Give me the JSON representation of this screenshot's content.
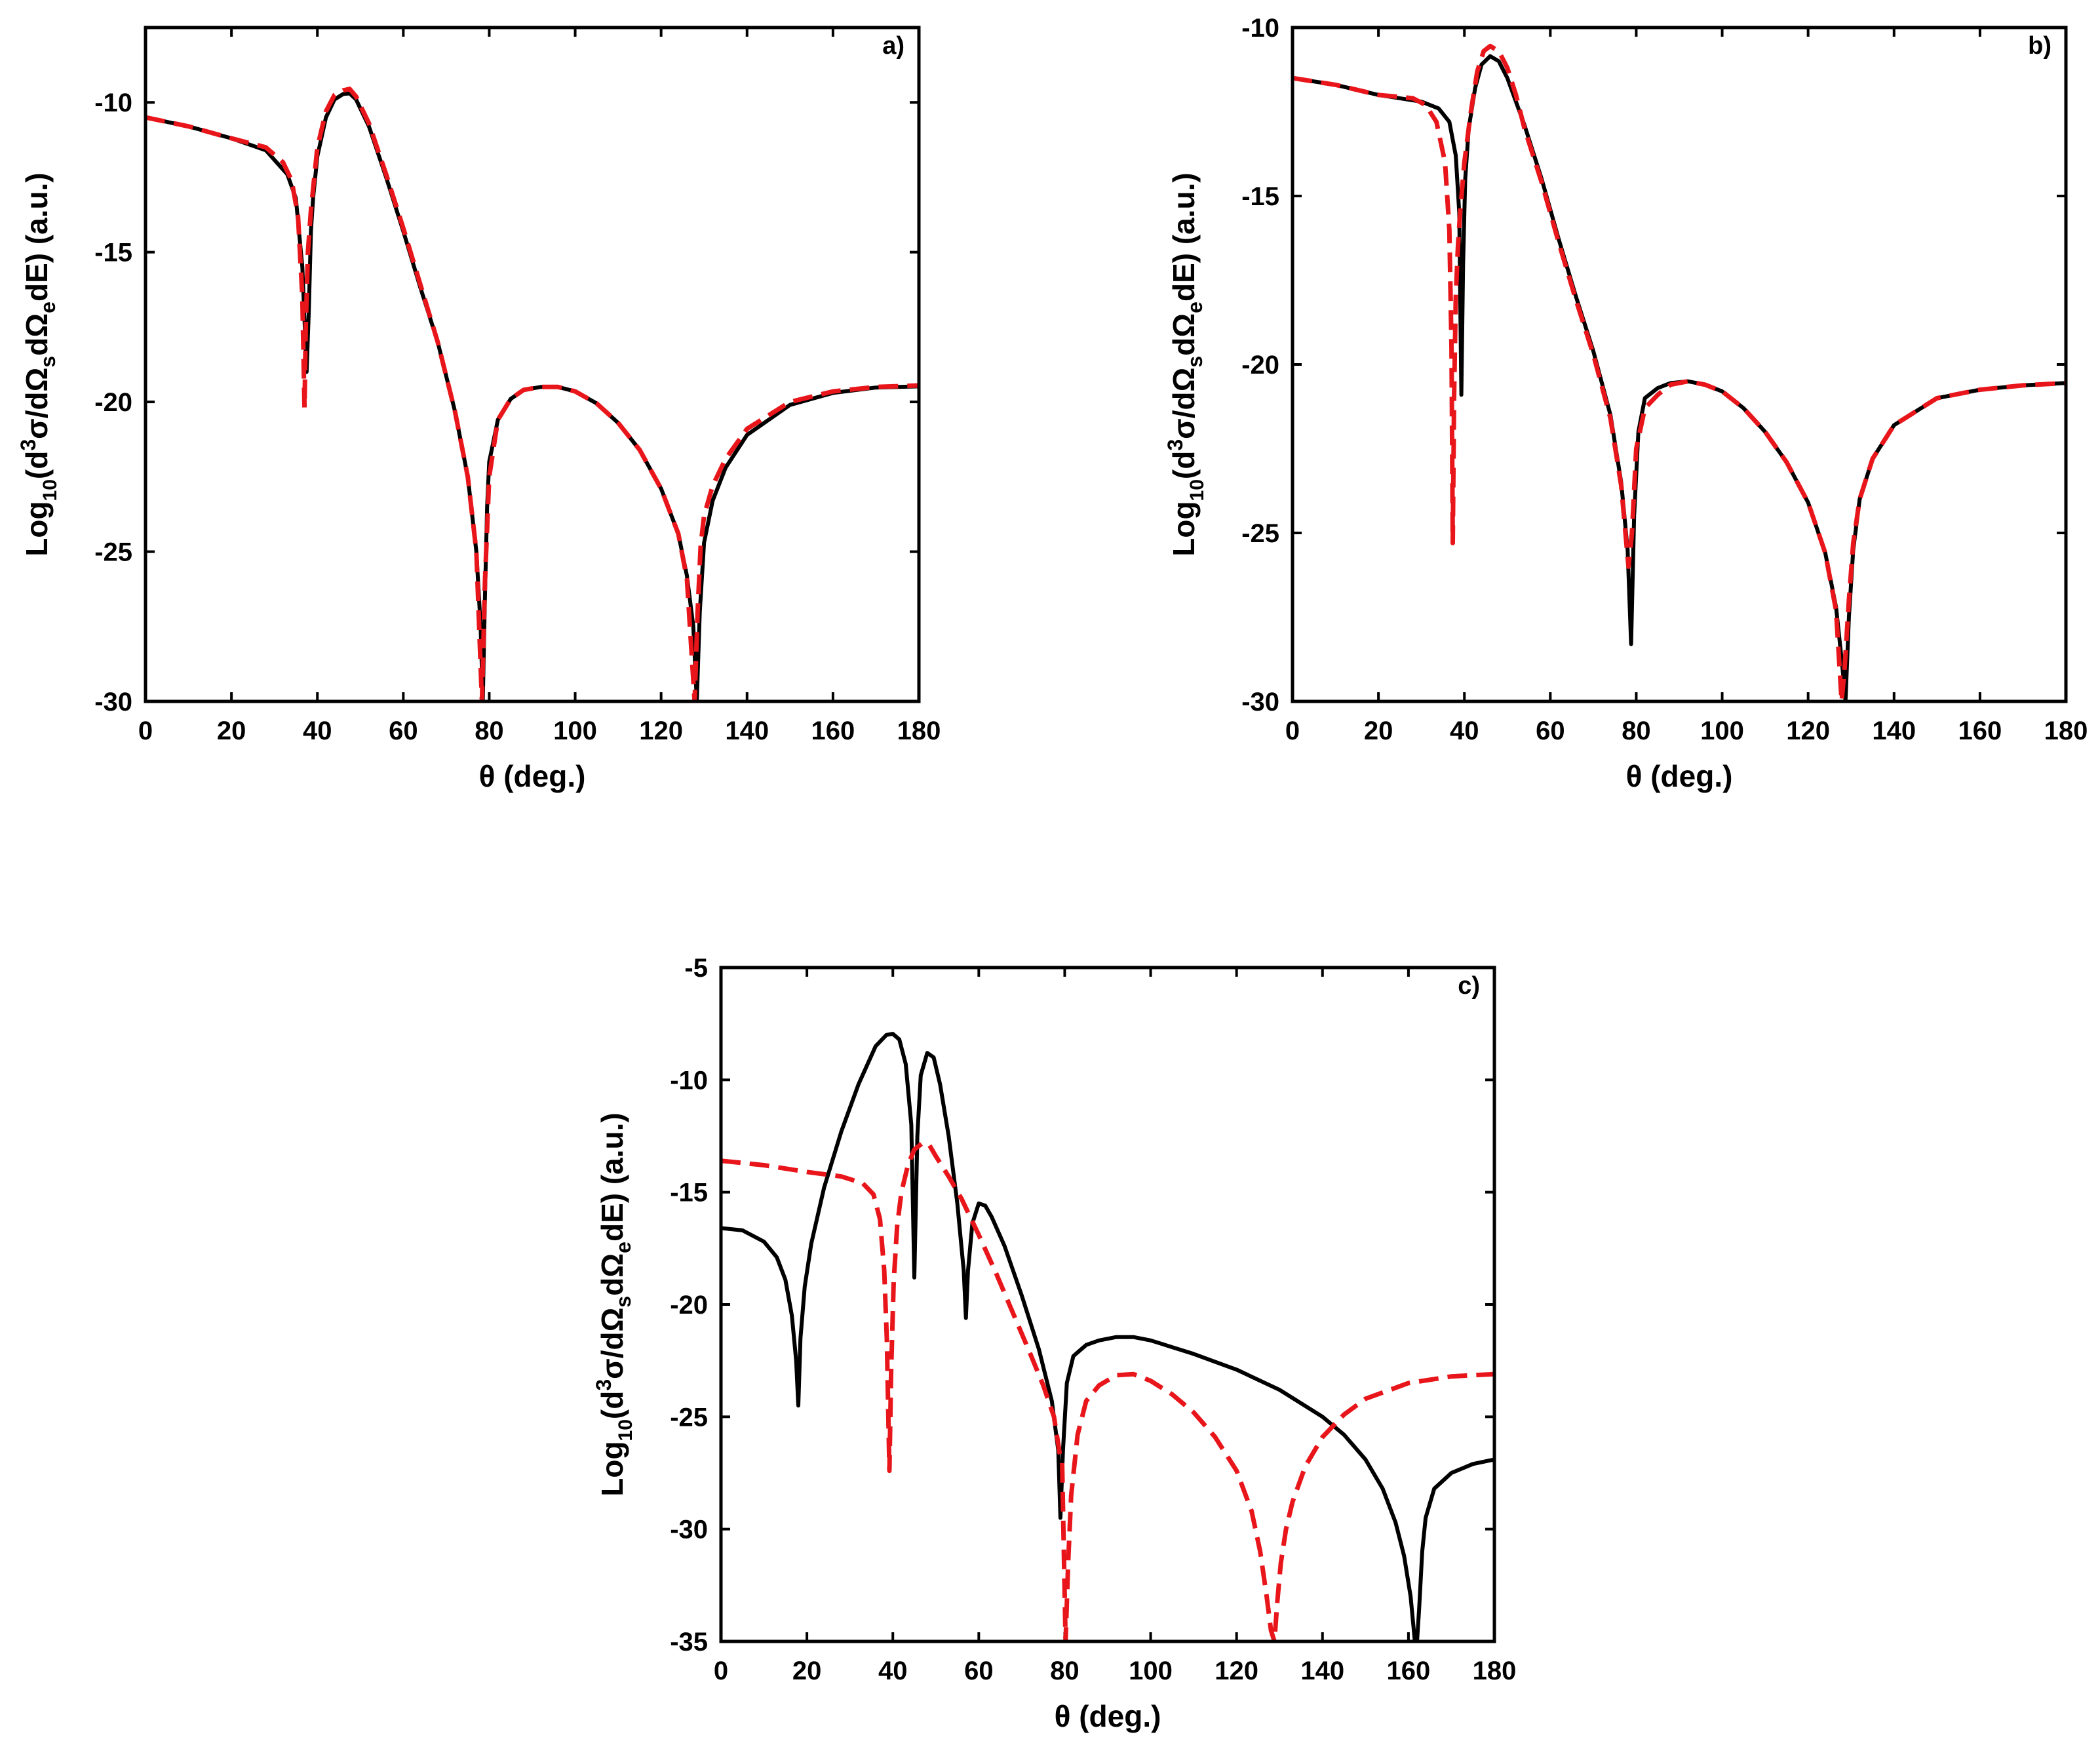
{
  "chart_data": [
    {
      "id": "a",
      "type": "line",
      "panel_label": "a)",
      "xlabel": "θ (deg.)",
      "ylabel_parts": {
        "base": "Log",
        "base_sub": "10",
        "open": "(d",
        "exp": "3",
        "mid1": "σ/dΩ",
        "sub_s": "s",
        "mid2": "dΩ",
        "sub_e": "e",
        "end": "dE) (a.u.)"
      },
      "xlim": [
        0,
        180
      ],
      "ylim": [
        -30,
        -7.5
      ],
      "xticks": [
        0,
        20,
        40,
        60,
        80,
        100,
        120,
        140,
        160,
        180
      ],
      "yticks": [
        -30,
        -25,
        -20,
        -15,
        -10
      ],
      "ytick_labels": [
        "-30",
        "-25",
        "-20",
        "-15",
        "-10"
      ],
      "series": [
        {
          "name": "solid",
          "color": "#000000",
          "style": "solid",
          "x": [
            0,
            10,
            20,
            28,
            33,
            35,
            36.5,
            37.5,
            38,
            38.5,
            39,
            40,
            42,
            44,
            46,
            47.5,
            49,
            52,
            56,
            60,
            64,
            68,
            72,
            75,
            77,
            78,
            78.5,
            79,
            79.5,
            80,
            82,
            85,
            88,
            92,
            96,
            100,
            105,
            110,
            115,
            120,
            124,
            126,
            127.5,
            128.3,
            129,
            130,
            132,
            135,
            140,
            150,
            160,
            170,
            180
          ],
          "y": [
            -10.5,
            -10.8,
            -11.2,
            -11.6,
            -12.4,
            -13.2,
            -15.5,
            -19.0,
            -17.0,
            -14.3,
            -13.2,
            -11.8,
            -10.5,
            -9.9,
            -9.72,
            -9.7,
            -9.9,
            -10.8,
            -12.5,
            -14.3,
            -16.2,
            -18.0,
            -20.3,
            -22.5,
            -25.0,
            -27.5,
            -30.0,
            -26.5,
            -23.5,
            -22.0,
            -20.6,
            -19.9,
            -19.6,
            -19.5,
            -19.5,
            -19.65,
            -20.05,
            -20.7,
            -21.6,
            -22.9,
            -24.4,
            -25.8,
            -27.5,
            -30.0,
            -27.0,
            -24.7,
            -23.3,
            -22.2,
            -21.1,
            -20.1,
            -19.7,
            -19.52,
            -19.48
          ]
        },
        {
          "name": "dashed",
          "color": "#e8161b",
          "style": "dashed",
          "x": [
            0,
            10,
            20,
            28,
            32,
            34,
            35.5,
            36.5,
            37,
            37.3,
            37.8,
            38.5,
            40,
            42,
            44,
            46,
            47.5,
            49,
            52,
            56,
            60,
            64,
            68,
            72,
            75,
            77,
            78.3,
            79,
            80,
            82,
            85,
            88,
            92,
            96,
            100,
            105,
            110,
            115,
            120,
            124,
            126,
            127.8,
            128.5,
            129.2,
            130,
            132,
            135,
            140,
            150,
            160,
            170,
            180
          ],
          "y": [
            -10.5,
            -10.8,
            -11.2,
            -11.5,
            -12.0,
            -12.6,
            -13.8,
            -16.5,
            -20.2,
            -17.5,
            -15.0,
            -13.6,
            -11.5,
            -10.3,
            -9.75,
            -9.6,
            -9.55,
            -9.8,
            -10.7,
            -12.4,
            -14.2,
            -16.1,
            -18.0,
            -20.3,
            -22.5,
            -25.0,
            -30.0,
            -26.0,
            -22.5,
            -20.6,
            -19.9,
            -19.6,
            -19.5,
            -19.5,
            -19.65,
            -20.05,
            -20.7,
            -21.6,
            -22.9,
            -24.4,
            -25.9,
            -30.0,
            -27.0,
            -24.8,
            -23.8,
            -22.8,
            -21.9,
            -20.9,
            -20.0,
            -19.65,
            -19.5,
            -19.45
          ]
        }
      ]
    },
    {
      "id": "b",
      "type": "line",
      "panel_label": "b)",
      "xlabel": "θ (deg.)",
      "ylabel_parts": {
        "base": "Log",
        "base_sub": "10",
        "open": "(d",
        "exp": "3",
        "mid1": "σ/dΩ",
        "sub_s": "s",
        "mid2": "dΩ",
        "sub_e": "e",
        "end": "dE) (a.u.)"
      },
      "xlim": [
        0,
        180
      ],
      "ylim": [
        -30,
        -10
      ],
      "xticks": [
        0,
        20,
        40,
        60,
        80,
        100,
        120,
        140,
        160,
        180
      ],
      "yticks": [
        -30,
        -25,
        -20,
        -15,
        -10
      ],
      "ytick_labels": [
        "-30",
        "-25",
        "-20",
        "-15",
        "-10"
      ],
      "series": [
        {
          "name": "solid",
          "color": "#000000",
          "style": "solid",
          "x": [
            0,
            10,
            20,
            30,
            34,
            36.5,
            38,
            38.8,
            39.3,
            39.7,
            40.2,
            41,
            42.5,
            44,
            46,
            48,
            50,
            54,
            58,
            62,
            66,
            70,
            74,
            76.5,
            78,
            78.8,
            79.5,
            80.5,
            82,
            85,
            88,
            92,
            96,
            100,
            105,
            110,
            115,
            120,
            124,
            126.5,
            128,
            128.7,
            129.5,
            130.5,
            132,
            135,
            140,
            150,
            160,
            170,
            180
          ],
          "y": [
            -11.5,
            -11.7,
            -12.0,
            -12.2,
            -12.4,
            -12.8,
            -13.8,
            -15.5,
            -20.9,
            -17.0,
            -14.5,
            -13.0,
            -11.8,
            -11.1,
            -10.85,
            -11.0,
            -11.5,
            -12.9,
            -14.5,
            -16.3,
            -18.0,
            -19.6,
            -21.5,
            -23.5,
            -25.5,
            -28.3,
            -24.5,
            -22.0,
            -21.0,
            -20.7,
            -20.55,
            -20.5,
            -20.6,
            -20.8,
            -21.3,
            -22.0,
            -22.9,
            -24.1,
            -25.6,
            -27.2,
            -29.0,
            -30.0,
            -27.5,
            -25.5,
            -24.0,
            -22.8,
            -21.8,
            -21.0,
            -20.75,
            -20.62,
            -20.55
          ]
        },
        {
          "name": "dashed",
          "color": "#e8161b",
          "style": "dashed",
          "x": [
            0,
            10,
            20,
            28,
            31,
            33.5,
            35.5,
            36.5,
            37,
            37.3,
            37.6,
            38,
            38.5,
            39,
            40,
            41.5,
            43,
            44.5,
            46,
            48,
            50,
            52,
            54,
            58,
            62,
            66,
            70,
            74,
            76.5,
            78.2,
            79,
            80,
            82,
            85,
            88,
            92,
            96,
            100,
            105,
            110,
            115,
            120,
            124,
            126.5,
            127.8,
            128.5,
            129.5,
            130.5,
            132,
            135,
            140,
            150,
            160,
            170,
            180
          ],
          "y": [
            -11.5,
            -11.7,
            -12.0,
            -12.1,
            -12.3,
            -12.8,
            -14.0,
            -16.0,
            -19.5,
            -25.3,
            -21.0,
            -18.0,
            -16.5,
            -15.5,
            -14.0,
            -12.5,
            -11.3,
            -10.7,
            -10.55,
            -10.7,
            -11.2,
            -12.0,
            -13.0,
            -14.6,
            -16.4,
            -18.1,
            -19.7,
            -21.6,
            -23.6,
            -26.0,
            -25.0,
            -22.5,
            -21.3,
            -20.9,
            -20.6,
            -20.5,
            -20.6,
            -20.8,
            -21.3,
            -22.0,
            -22.9,
            -24.1,
            -25.6,
            -27.3,
            -30.0,
            -29.0,
            -27.0,
            -25.3,
            -24.0,
            -22.8,
            -21.8,
            -21.0,
            -20.75,
            -20.62,
            -20.55
          ]
        }
      ]
    },
    {
      "id": "c",
      "type": "line",
      "panel_label": "c)",
      "xlabel": "θ (deg.)",
      "ylabel_parts": {
        "base": "Log",
        "base_sub": "10",
        "open": "(d",
        "exp": "3",
        "mid1": "σ/dΩ",
        "sub_s": "s",
        "mid2": "dΩ",
        "sub_e": "e",
        "end": "dE) (a.u.)"
      },
      "xlim": [
        0,
        180
      ],
      "ylim": [
        -35,
        -5
      ],
      "xticks": [
        0,
        20,
        40,
        60,
        80,
        100,
        120,
        140,
        160,
        180
      ],
      "yticks": [
        -35,
        -30,
        -25,
        -20,
        -15,
        -10,
        -5
      ],
      "ytick_labels": [
        "-35",
        "-30",
        "-25",
        "-20",
        "-15",
        "-10",
        "-5"
      ],
      "series": [
        {
          "name": "solid",
          "color": "#000000",
          "style": "solid",
          "x": [
            0,
            5,
            10,
            13,
            15,
            16.5,
            17.5,
            18,
            18.5,
            19.5,
            21,
            24,
            28,
            32,
            36,
            38.5,
            40,
            41.5,
            43,
            44.3,
            45,
            45.7,
            46.5,
            48,
            49.5,
            51,
            53,
            55,
            56.5,
            57,
            57.5,
            58.5,
            60,
            61.5,
            63,
            66,
            70,
            74,
            77,
            78.5,
            79,
            79.6,
            80.5,
            82,
            85,
            88,
            92,
            96,
            100,
            110,
            120,
            130,
            140,
            145,
            150,
            154,
            157,
            159,
            160.5,
            161.5,
            162,
            162.5,
            163.2,
            164,
            166,
            170,
            175,
            180
          ],
          "y": [
            -16.6,
            -16.7,
            -17.2,
            -17.9,
            -18.9,
            -20.5,
            -22.5,
            -24.5,
            -21.5,
            -19.2,
            -17.3,
            -14.8,
            -12.3,
            -10.2,
            -8.5,
            -8.0,
            -7.95,
            -8.2,
            -9.3,
            -12.0,
            -18.8,
            -12.5,
            -9.8,
            -8.8,
            -9.0,
            -10.2,
            -12.5,
            -15.5,
            -18.5,
            -20.6,
            -18.5,
            -16.4,
            -15.5,
            -15.6,
            -16.1,
            -17.4,
            -19.6,
            -22.0,
            -24.3,
            -26.5,
            -29.5,
            -26.5,
            -23.5,
            -22.3,
            -21.8,
            -21.6,
            -21.45,
            -21.45,
            -21.6,
            -22.2,
            -22.9,
            -23.8,
            -25.0,
            -25.8,
            -26.9,
            -28.2,
            -29.7,
            -31.2,
            -33.0,
            -35.0,
            -35.0,
            -33.5,
            -31.0,
            -29.5,
            -28.2,
            -27.5,
            -27.1,
            -26.9
          ]
        },
        {
          "name": "dashed",
          "color": "#e8161b",
          "style": "dashed",
          "x": [
            0,
            10,
            20,
            28,
            33,
            35.5,
            37,
            38,
            38.6,
            39.2,
            39.6,
            40.2,
            41,
            42,
            43.5,
            45,
            47,
            48.5,
            50,
            53,
            56,
            60,
            64,
            68,
            72,
            75,
            77.5,
            78.8,
            79.4,
            79.8,
            80.2,
            80.8,
            81.5,
            83,
            85,
            88,
            92,
            96,
            100,
            105,
            110,
            115,
            120,
            123.5,
            125.5,
            127,
            128,
            128.8,
            129.5,
            130.3,
            131.5,
            133,
            136,
            140,
            145,
            150,
            160,
            170,
            180
          ],
          "y": [
            -13.6,
            -13.8,
            -14.1,
            -14.3,
            -14.6,
            -15.1,
            -16.2,
            -18.5,
            -21.5,
            -27.4,
            -23.0,
            -19.0,
            -16.5,
            -15.0,
            -13.8,
            -13.1,
            -12.8,
            -12.9,
            -13.4,
            -14.3,
            -15.3,
            -16.9,
            -18.6,
            -20.4,
            -22.2,
            -23.6,
            -25.0,
            -26.6,
            -27.0,
            -31.0,
            -35.0,
            -31.5,
            -28.5,
            -25.8,
            -24.3,
            -23.6,
            -23.15,
            -23.1,
            -23.4,
            -24.0,
            -24.8,
            -25.9,
            -27.4,
            -29.2,
            -31.0,
            -33.0,
            -34.5,
            -35.0,
            -33.2,
            -31.5,
            -30.0,
            -28.8,
            -27.2,
            -25.9,
            -24.9,
            -24.2,
            -23.5,
            -23.2,
            -23.1
          ]
        }
      ]
    }
  ]
}
